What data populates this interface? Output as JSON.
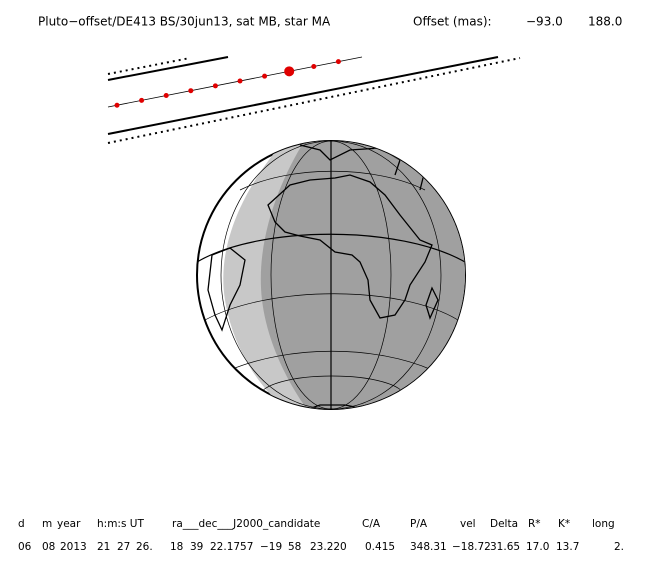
{
  "header": {
    "title": "Pluto−offset/DE413 BS/30jun13, sat MB, star MA",
    "offset_label": "Offset (mas):",
    "offset_x": "−93.0",
    "offset_y": "188.0"
  },
  "footer": {
    "columns": [
      "d",
      "m",
      "year",
      "h:m:s UT",
      "ra___dec___J2000_candidate",
      "C/A",
      "P/A",
      "vel",
      "Delta",
      "R*",
      "K*",
      "long"
    ],
    "values": [
      "06",
      "08",
      "2013",
      "21",
      "27",
      "26.",
      "18",
      "39",
      "22.1757",
      "−19",
      "58",
      "23.220",
      "0.415",
      "348.31",
      "−18.72",
      "31.65",
      "17.0",
      "13.7",
      "2."
    ]
  }
}
